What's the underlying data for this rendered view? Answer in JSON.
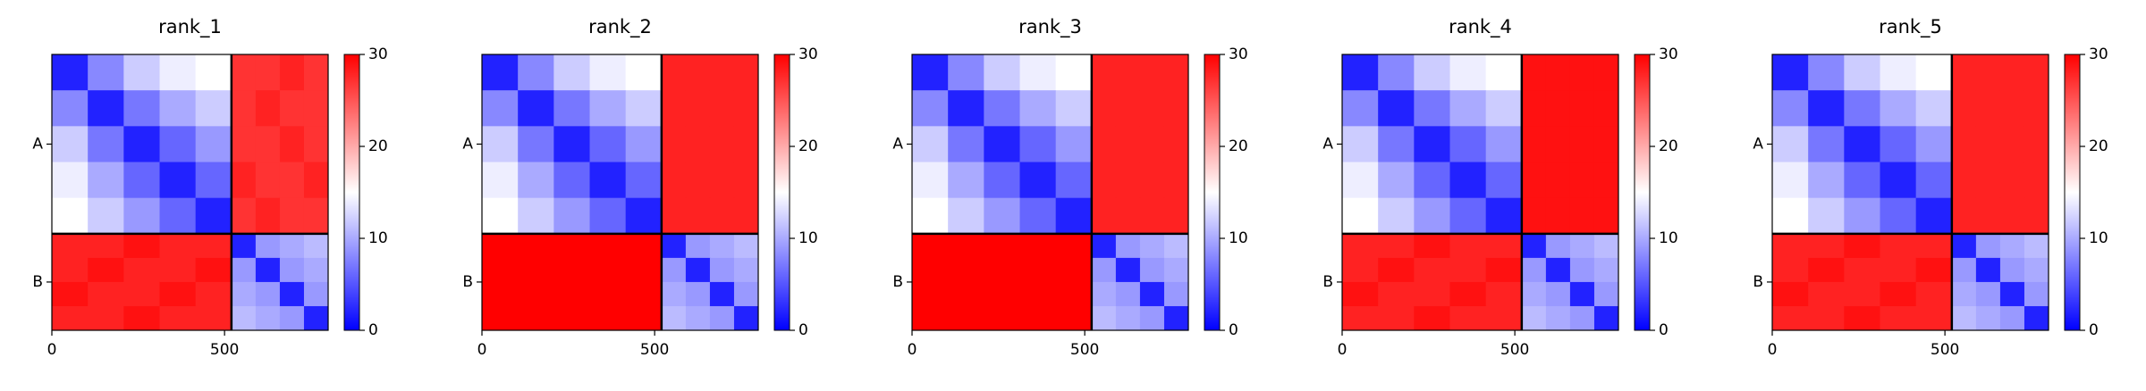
{
  "chart_data": [
    {
      "type": "heatmap",
      "title": "rank_1",
      "colormap": "bwr",
      "x_edges": [
        0,
        104,
        208,
        312,
        416,
        520,
        590,
        660,
        730,
        800
      ],
      "y_edges": [
        0,
        104,
        208,
        312,
        416,
        520,
        590,
        660,
        730,
        800
      ],
      "values": [
        [
          2,
          8,
          12,
          14,
          15,
          27,
          27,
          28,
          27
        ],
        [
          8,
          2,
          7,
          10,
          12,
          27,
          28,
          27,
          27
        ],
        [
          12,
          7,
          2,
          6,
          9,
          27,
          27,
          28,
          27
        ],
        [
          14,
          10,
          6,
          2,
          6,
          28,
          27,
          27,
          28
        ],
        [
          15,
          12,
          9,
          6,
          2,
          27,
          28,
          27,
          27
        ],
        [
          28,
          28,
          29,
          28,
          28,
          2,
          9,
          10,
          11
        ],
        [
          28,
          29,
          28,
          28,
          29,
          9,
          2,
          9,
          10
        ],
        [
          29,
          28,
          28,
          29,
          28,
          10,
          9,
          2,
          9
        ],
        [
          28,
          28,
          29,
          28,
          28,
          11,
          10,
          9,
          2
        ]
      ],
      "xlim": [
        0,
        800
      ],
      "ylim": [
        800,
        0
      ],
      "xticks": [
        0,
        500
      ],
      "yticks": [
        {
          "value": 260,
          "label": "A"
        },
        {
          "value": 660,
          "label": "B"
        }
      ],
      "boundaries": [
        520
      ],
      "clim": [
        0,
        30
      ],
      "cticks": [
        0,
        10,
        20,
        30
      ]
    },
    {
      "type": "heatmap",
      "title": "rank_2",
      "colormap": "bwr",
      "x_edges": [
        0,
        104,
        208,
        312,
        416,
        520,
        590,
        660,
        730,
        800
      ],
      "y_edges": [
        0,
        104,
        208,
        312,
        416,
        520,
        590,
        660,
        730,
        800
      ],
      "values": [
        [
          2,
          8,
          12,
          14,
          15,
          28,
          28,
          28,
          28
        ],
        [
          8,
          2,
          7,
          10,
          12,
          28,
          28,
          28,
          28
        ],
        [
          12,
          7,
          2,
          6,
          9,
          28,
          28,
          28,
          28
        ],
        [
          14,
          10,
          6,
          2,
          6,
          28,
          28,
          28,
          28
        ],
        [
          15,
          12,
          9,
          6,
          2,
          28,
          28,
          28,
          28
        ],
        [
          30,
          30,
          30,
          30,
          30,
          2,
          9,
          10,
          11
        ],
        [
          30,
          30,
          30,
          30,
          30,
          9,
          2,
          9,
          10
        ],
        [
          30,
          30,
          30,
          30,
          30,
          10,
          9,
          2,
          9
        ],
        [
          30,
          30,
          30,
          30,
          30,
          11,
          10,
          9,
          2
        ]
      ],
      "xlim": [
        0,
        800
      ],
      "ylim": [
        800,
        0
      ],
      "xticks": [
        0,
        500
      ],
      "yticks": [
        {
          "value": 260,
          "label": "A"
        },
        {
          "value": 660,
          "label": "B"
        }
      ],
      "boundaries": [
        520
      ],
      "clim": [
        0,
        30
      ],
      "cticks": [
        0,
        10,
        20,
        30
      ]
    },
    {
      "type": "heatmap",
      "title": "rank_3",
      "colormap": "bwr",
      "x_edges": [
        0,
        104,
        208,
        312,
        416,
        520,
        590,
        660,
        730,
        800
      ],
      "y_edges": [
        0,
        104,
        208,
        312,
        416,
        520,
        590,
        660,
        730,
        800
      ],
      "values": [
        [
          2,
          8,
          12,
          14,
          15,
          28,
          28,
          28,
          28
        ],
        [
          8,
          2,
          7,
          10,
          12,
          28,
          28,
          28,
          28
        ],
        [
          12,
          7,
          2,
          6,
          9,
          28,
          28,
          28,
          28
        ],
        [
          14,
          10,
          6,
          2,
          6,
          28,
          28,
          28,
          28
        ],
        [
          15,
          12,
          9,
          6,
          2,
          28,
          28,
          28,
          28
        ],
        [
          30,
          30,
          30,
          30,
          30,
          2,
          9,
          10,
          11
        ],
        [
          30,
          30,
          30,
          30,
          30,
          9,
          2,
          9,
          10
        ],
        [
          30,
          30,
          30,
          30,
          30,
          10,
          9,
          2,
          9
        ],
        [
          30,
          30,
          30,
          30,
          30,
          11,
          10,
          9,
          2
        ]
      ],
      "xlim": [
        0,
        800
      ],
      "ylim": [
        800,
        0
      ],
      "xticks": [
        0,
        500
      ],
      "yticks": [
        {
          "value": 260,
          "label": "A"
        },
        {
          "value": 660,
          "label": "B"
        }
      ],
      "boundaries": [
        520
      ],
      "clim": [
        0,
        30
      ],
      "cticks": [
        0,
        10,
        20,
        30
      ]
    },
    {
      "type": "heatmap",
      "title": "rank_4",
      "colormap": "bwr",
      "x_edges": [
        0,
        104,
        208,
        312,
        416,
        520,
        590,
        660,
        730,
        800
      ],
      "y_edges": [
        0,
        104,
        208,
        312,
        416,
        520,
        590,
        660,
        730,
        800
      ],
      "values": [
        [
          2,
          8,
          12,
          14,
          15,
          29,
          29,
          29,
          29
        ],
        [
          8,
          2,
          7,
          10,
          12,
          29,
          29,
          29,
          29
        ],
        [
          12,
          7,
          2,
          6,
          9,
          29,
          29,
          29,
          29
        ],
        [
          14,
          10,
          6,
          2,
          6,
          29,
          29,
          29,
          29
        ],
        [
          15,
          12,
          9,
          6,
          2,
          29,
          29,
          29,
          29
        ],
        [
          28,
          28,
          29,
          28,
          28,
          2,
          9,
          10,
          11
        ],
        [
          28,
          29,
          28,
          28,
          29,
          9,
          2,
          9,
          10
        ],
        [
          29,
          28,
          28,
          29,
          28,
          10,
          9,
          2,
          9
        ],
        [
          28,
          28,
          29,
          28,
          28,
          11,
          10,
          9,
          2
        ]
      ],
      "xlim": [
        0,
        800
      ],
      "ylim": [
        800,
        0
      ],
      "xticks": [
        0,
        500
      ],
      "yticks": [
        {
          "value": 260,
          "label": "A"
        },
        {
          "value": 660,
          "label": "B"
        }
      ],
      "boundaries": [
        520
      ],
      "clim": [
        0,
        30
      ],
      "cticks": [
        0,
        10,
        20,
        30
      ]
    },
    {
      "type": "heatmap",
      "title": "rank_5",
      "colormap": "bwr",
      "x_edges": [
        0,
        104,
        208,
        312,
        416,
        520,
        590,
        660,
        730,
        800
      ],
      "y_edges": [
        0,
        104,
        208,
        312,
        416,
        520,
        590,
        660,
        730,
        800
      ],
      "values": [
        [
          2,
          8,
          12,
          14,
          15,
          28,
          28,
          28,
          28
        ],
        [
          8,
          2,
          7,
          10,
          12,
          28,
          28,
          28,
          28
        ],
        [
          12,
          7,
          2,
          6,
          9,
          28,
          28,
          28,
          28
        ],
        [
          14,
          10,
          6,
          2,
          6,
          28,
          28,
          28,
          28
        ],
        [
          15,
          12,
          9,
          6,
          2,
          28,
          28,
          28,
          28
        ],
        [
          28,
          28,
          29,
          28,
          28,
          2,
          9,
          10,
          11
        ],
        [
          28,
          29,
          28,
          28,
          29,
          9,
          2,
          9,
          10
        ],
        [
          29,
          28,
          28,
          29,
          28,
          10,
          9,
          2,
          9
        ],
        [
          28,
          28,
          29,
          28,
          28,
          11,
          10,
          9,
          2
        ]
      ],
      "xlim": [
        0,
        800
      ],
      "ylim": [
        800,
        0
      ],
      "xticks": [
        0,
        500
      ],
      "yticks": [
        {
          "value": 260,
          "label": "A"
        },
        {
          "value": 660,
          "label": "B"
        }
      ],
      "boundaries": [
        520
      ],
      "clim": [
        0,
        30
      ],
      "cticks": [
        0,
        10,
        20,
        30
      ]
    }
  ]
}
